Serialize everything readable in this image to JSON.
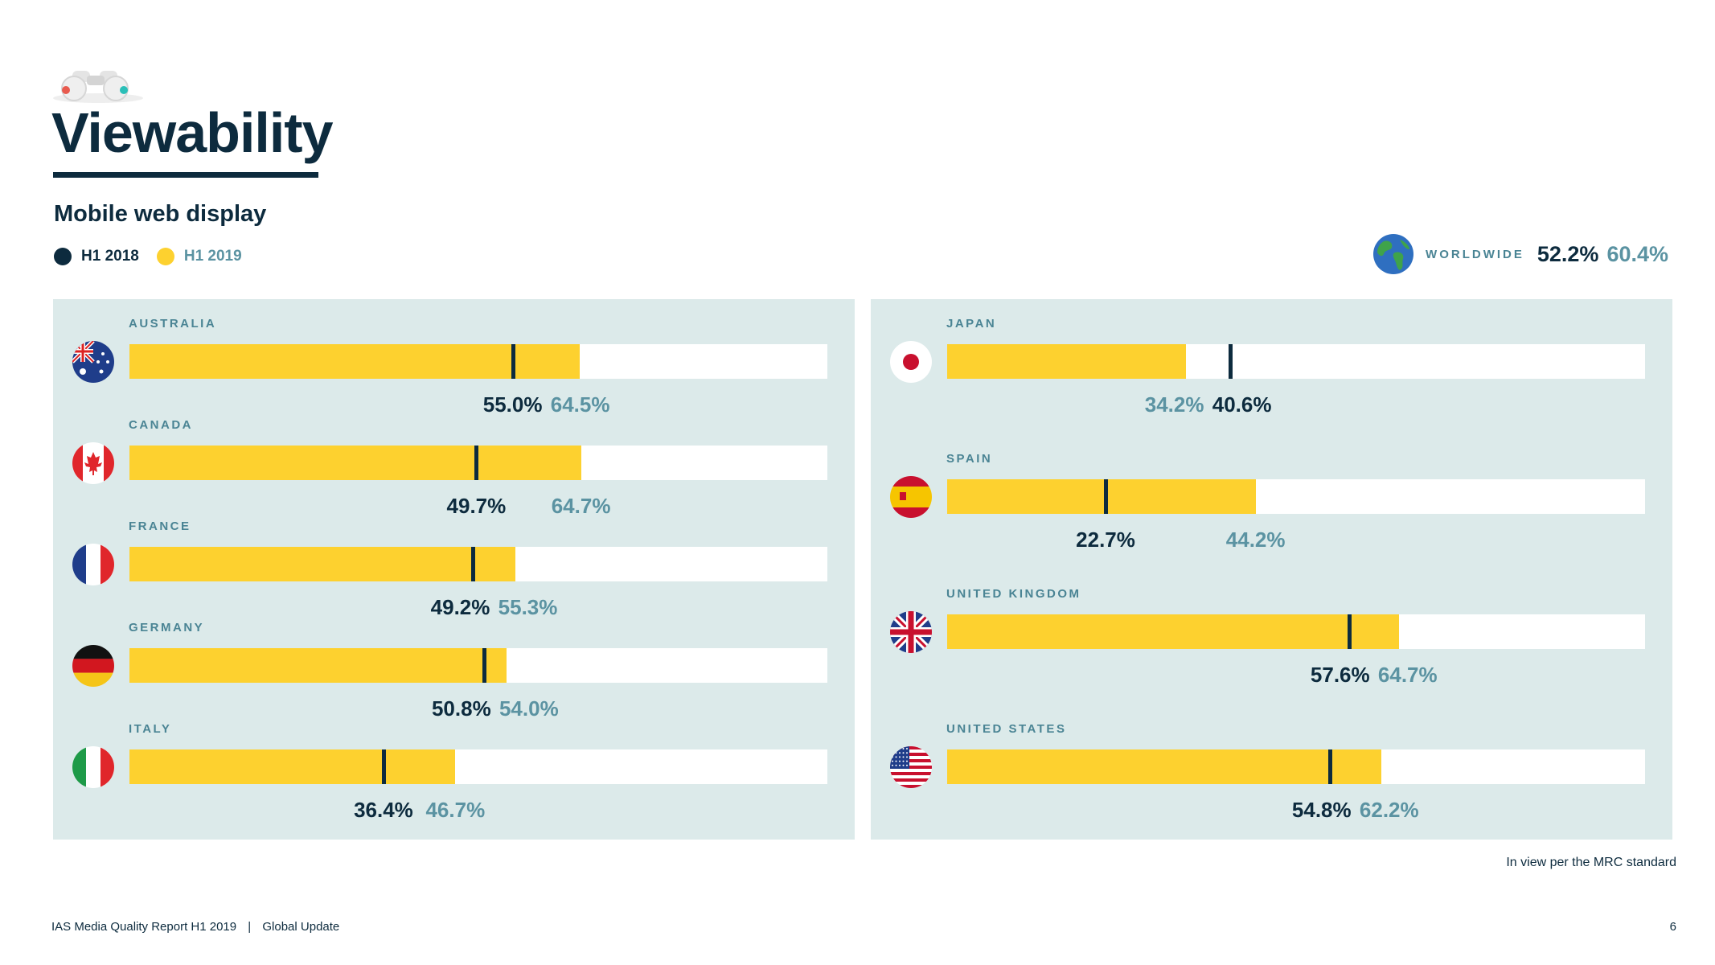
{
  "title": "Viewability",
  "subtitle": "Mobile web display",
  "legend": {
    "h1_2018": "H1 2018",
    "h1_2019": "H1 2019"
  },
  "colors": {
    "h1_2018": "#0d2b3e",
    "h1_2019": "#fdd12f",
    "label_2019": "#5b93a2",
    "panel": "#dceaea"
  },
  "worldwide": {
    "label": "WORLDWIDE",
    "h1_2018": "52.2%",
    "h1_2019": "60.4%",
    "icon": "globe-icon"
  },
  "note": "In view per the MRC standard",
  "footer": {
    "report": "IAS Media Quality Report H1 2019",
    "separator": "|",
    "section": "Global Update",
    "page": "6"
  },
  "chart_data": {
    "type": "bar",
    "x_range": [
      0,
      100
    ],
    "series": [
      {
        "name": "H1 2018"
      },
      {
        "name": "H1 2019"
      }
    ],
    "countries": [
      {
        "name": "AUSTRALIA",
        "flag": "australia-flag-icon",
        "h1_2018": 55.0,
        "h1_2019": 64.5,
        "label_2018": "55.0%",
        "label_2019": "64.5%",
        "panel": "left"
      },
      {
        "name": "CANADA",
        "flag": "canada-flag-icon",
        "h1_2018": 49.7,
        "h1_2019": 64.7,
        "label_2018": "49.7%",
        "label_2019": "64.7%",
        "panel": "left"
      },
      {
        "name": "FRANCE",
        "flag": "france-flag-icon",
        "h1_2018": 49.2,
        "h1_2019": 55.3,
        "label_2018": "49.2%",
        "label_2019": "55.3%",
        "panel": "left"
      },
      {
        "name": "GERMANY",
        "flag": "germany-flag-icon",
        "h1_2018": 50.8,
        "h1_2019": 54.0,
        "label_2018": "50.8%",
        "label_2019": "54.0%",
        "panel": "left"
      },
      {
        "name": "ITALY",
        "flag": "italy-flag-icon",
        "h1_2018": 36.4,
        "h1_2019": 46.7,
        "label_2018": "36.4%",
        "label_2019": "46.7%",
        "panel": "left"
      },
      {
        "name": "JAPAN",
        "flag": "japan-flag-icon",
        "h1_2018": 40.6,
        "h1_2019": 34.2,
        "label_2018": "40.6%",
        "label_2019": "34.2%",
        "panel": "right"
      },
      {
        "name": "SPAIN",
        "flag": "spain-flag-icon",
        "h1_2018": 22.7,
        "h1_2019": 44.2,
        "label_2018": "22.7%",
        "label_2019": "44.2%",
        "panel": "right"
      },
      {
        "name": "UNITED KINGDOM",
        "flag": "uk-flag-icon",
        "h1_2018": 57.6,
        "h1_2019": 64.7,
        "label_2018": "57.6%",
        "label_2019": "64.7%",
        "panel": "right"
      },
      {
        "name": "UNITED STATES",
        "flag": "us-flag-icon",
        "h1_2018": 54.8,
        "h1_2019": 62.2,
        "label_2018": "54.8%",
        "label_2019": "62.2%",
        "panel": "right"
      }
    ]
  }
}
